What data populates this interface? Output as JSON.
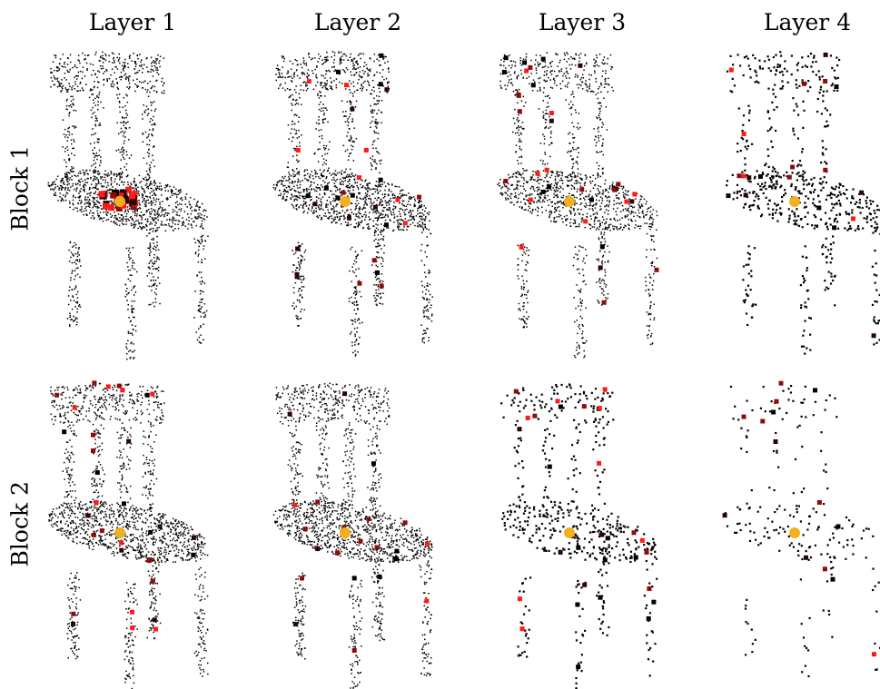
{
  "columns": [
    "Layer 1",
    "Layer 2",
    "Layer 3",
    "Layer 4"
  ],
  "rows": [
    "Block 1",
    "Block 2"
  ],
  "colors": {
    "point": "#000000",
    "query": "#f2b01e",
    "attention_low": "#2a0505",
    "attention_mid": "#8c0c0c",
    "attention_high": "#ff1a1a"
  },
  "panels": [
    {
      "row": 0,
      "col": 0,
      "density": 1.0,
      "highlights": 30,
      "spread": 0.22
    },
    {
      "row": 0,
      "col": 1,
      "density": 1.0,
      "highlights": 30,
      "spread": 0.9
    },
    {
      "row": 0,
      "col": 2,
      "density": 0.85,
      "highlights": 34,
      "spread": 1.0
    },
    {
      "row": 0,
      "col": 3,
      "density": 0.35,
      "highlights": 20,
      "spread": 1.0
    },
    {
      "row": 1,
      "col": 0,
      "density": 1.0,
      "highlights": 34,
      "spread": 0.55
    },
    {
      "row": 1,
      "col": 1,
      "density": 1.0,
      "highlights": 24,
      "spread": 1.0
    },
    {
      "row": 1,
      "col": 2,
      "density": 0.32,
      "highlights": 30,
      "spread": 1.0
    },
    {
      "row": 1,
      "col": 3,
      "density": 0.12,
      "highlights": 14,
      "spread": 1.0
    }
  ]
}
